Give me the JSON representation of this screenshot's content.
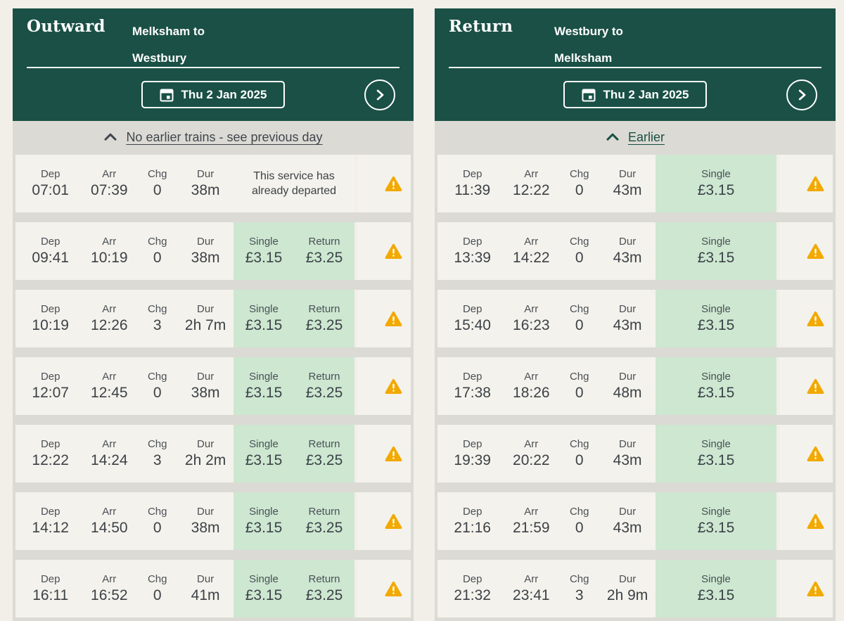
{
  "theme": {
    "colors": {
      "page_bg": "#F2EFE9",
      "panel_bg": "#DCDAD5",
      "header_green": "#1A5046",
      "row_bg": "#F4F2EC",
      "price_bg": "#CDE7D1",
      "text": "#3C4247",
      "label": "#4A5056",
      "link_muted": "#3F464C",
      "link_active": "#175043",
      "warning": "#F2A900"
    }
  },
  "icons": {
    "date_picker": "calendar-icon",
    "next_day": "chevron-right-icon",
    "earlier": "chevron-up-icon",
    "row_alert": "warning-triangle-icon"
  },
  "panels": [
    {
      "direction_label": "Outward",
      "route_line1": "Melksham to",
      "route_line2": "Westbury",
      "date_label": "Thu 2 Jan 2025",
      "earlier_label": "No earlier trains - see previous day",
      "earlier_state": "muted",
      "col_headers": {
        "dep": "Dep",
        "arr": "Arr",
        "chg": "Chg",
        "dur": "Dur"
      },
      "price_headers": {
        "single": "Single",
        "return": "Return"
      },
      "rows": [
        {
          "dep": "07:01",
          "arr": "07:39",
          "chg": "0",
          "dur": "38m",
          "message": "This service has already departed"
        },
        {
          "dep": "09:41",
          "arr": "10:19",
          "chg": "0",
          "dur": "38m",
          "single": "£3.15",
          "return": "£3.25"
        },
        {
          "dep": "10:19",
          "arr": "12:26",
          "chg": "3",
          "dur": "2h 7m",
          "single": "£3.15",
          "return": "£3.25"
        },
        {
          "dep": "12:07",
          "arr": "12:45",
          "chg": "0",
          "dur": "38m",
          "single": "£3.15",
          "return": "£3.25"
        },
        {
          "dep": "12:22",
          "arr": "14:24",
          "chg": "3",
          "dur": "2h 2m",
          "single": "£3.15",
          "return": "£3.25"
        },
        {
          "dep": "14:12",
          "arr": "14:50",
          "chg": "0",
          "dur": "38m",
          "single": "£3.15",
          "return": "£3.25"
        },
        {
          "dep": "16:11",
          "arr": "16:52",
          "chg": "0",
          "dur": "41m",
          "single": "£3.15",
          "return": "£3.25"
        }
      ]
    },
    {
      "direction_label": "Return",
      "route_line1": "Westbury to",
      "route_line2": "Melksham",
      "date_label": "Thu 2 Jan 2025",
      "earlier_label": "Earlier",
      "earlier_state": "active",
      "col_headers": {
        "dep": "Dep",
        "arr": "Arr",
        "chg": "Chg",
        "dur": "Dur"
      },
      "price_headers": {
        "single": "Single"
      },
      "rows": [
        {
          "dep": "11:39",
          "arr": "12:22",
          "chg": "0",
          "dur": "43m",
          "single": "£3.15"
        },
        {
          "dep": "13:39",
          "arr": "14:22",
          "chg": "0",
          "dur": "43m",
          "single": "£3.15"
        },
        {
          "dep": "15:40",
          "arr": "16:23",
          "chg": "0",
          "dur": "43m",
          "single": "£3.15"
        },
        {
          "dep": "17:38",
          "arr": "18:26",
          "chg": "0",
          "dur": "48m",
          "single": "£3.15"
        },
        {
          "dep": "19:39",
          "arr": "20:22",
          "chg": "0",
          "dur": "43m",
          "single": "£3.15"
        },
        {
          "dep": "21:16",
          "arr": "21:59",
          "chg": "0",
          "dur": "43m",
          "single": "£3.15"
        },
        {
          "dep": "21:32",
          "arr": "23:41",
          "chg": "3",
          "dur": "2h 9m",
          "single": "£3.15"
        }
      ]
    }
  ]
}
